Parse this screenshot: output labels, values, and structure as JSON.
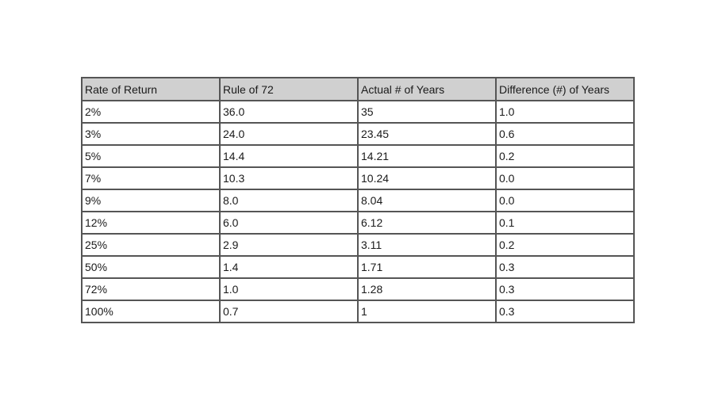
{
  "table": {
    "headers": [
      "Rate of Return",
      "Rule of 72",
      "Actual # of Years",
      "Difference (#) of Years"
    ],
    "rows": [
      [
        "2%",
        "36.0",
        "35",
        "1.0"
      ],
      [
        "3%",
        "24.0",
        "23.45",
        "0.6"
      ],
      [
        "5%",
        "14.4",
        "14.21",
        "0.2"
      ],
      [
        "7%",
        "10.3",
        "10.24",
        "0.0"
      ],
      [
        "9%",
        "8.0",
        "8.04",
        "0.0"
      ],
      [
        "12%",
        "6.0",
        "6.12",
        "0.1"
      ],
      [
        "25%",
        "2.9",
        "3.11",
        "0.2"
      ],
      [
        "50%",
        "1.4",
        "1.71",
        "0.3"
      ],
      [
        "72%",
        "1.0",
        "1.28",
        "0.3"
      ],
      [
        "100%",
        "0.7",
        "1",
        "0.3"
      ]
    ]
  },
  "colors": {
    "header_bg": "#d0d0d0",
    "border": "#555555",
    "text": "#1a1a1a"
  }
}
